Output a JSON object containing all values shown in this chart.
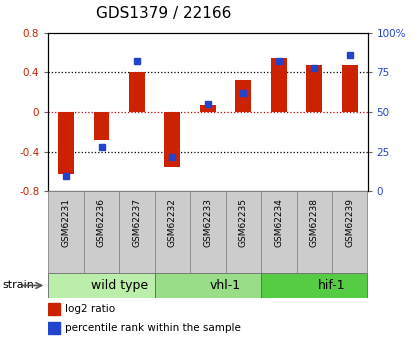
{
  "title": "GDS1379 / 22166",
  "samples": [
    "GSM62231",
    "GSM62236",
    "GSM62237",
    "GSM62232",
    "GSM62233",
    "GSM62235",
    "GSM62234",
    "GSM62238",
    "GSM62239"
  ],
  "log2_ratio": [
    -0.62,
    -0.28,
    0.4,
    -0.55,
    0.07,
    0.32,
    0.55,
    0.48,
    0.48
  ],
  "percentile": [
    10,
    28,
    82,
    22,
    55,
    62,
    82,
    78,
    86
  ],
  "groups": [
    {
      "label": "wild type",
      "start": 0,
      "end": 3,
      "color": "#bbeeaa"
    },
    {
      "label": "vhl-1",
      "start": 3,
      "end": 6,
      "color": "#99dd88"
    },
    {
      "label": "hif-1",
      "start": 6,
      "end": 9,
      "color": "#55cc44"
    }
  ],
  "ylim_left": [
    -0.8,
    0.8
  ],
  "ylim_right": [
    0,
    100
  ],
  "bar_color": "#cc2200",
  "dot_color": "#2244cc",
  "zero_line_color": "#cc0000",
  "grid_color": "#000000",
  "label_bg": "#cccccc",
  "label_border": "#888888",
  "title_fontsize": 11,
  "tick_fontsize": 7.5,
  "sample_fontsize": 6.5,
  "group_fontsize": 9,
  "legend_fontsize": 7.5
}
